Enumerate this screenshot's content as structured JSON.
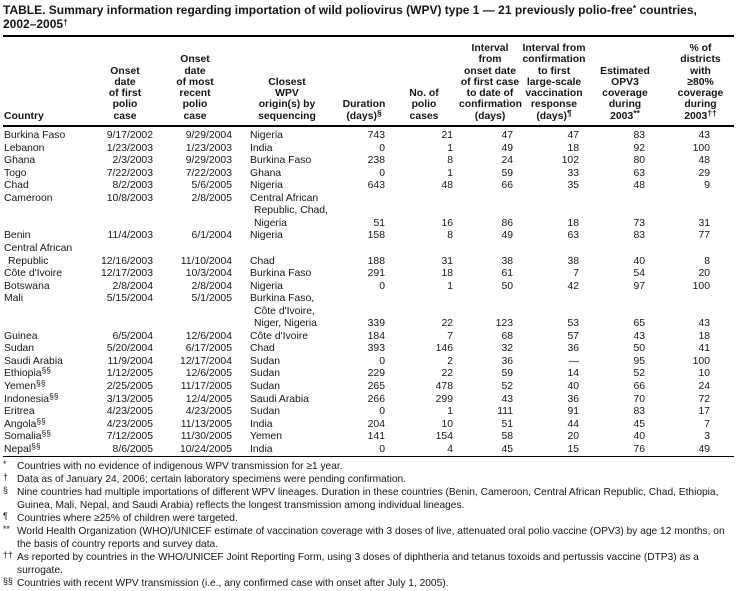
{
  "title_lines": [
    "TABLE. Summary information regarding importation of wild poliovirus (WPV) type 1 — 21 previously polio-free^{*} countries,",
    "2002–2005^{†}"
  ],
  "table": {
    "columns": [
      {
        "id": "country",
        "label": "Country"
      },
      {
        "id": "onset_first",
        "label": "Onset\ndate\nof first\npolio\ncase"
      },
      {
        "id": "onset_recent",
        "label": "Onset\ndate\nof most\nrecent\npolio\ncase"
      },
      {
        "id": "origin",
        "label": "Closest\nWPV\norigin(s) by\nsequencing"
      },
      {
        "id": "duration",
        "label": "Duration\n(days)^{§}"
      },
      {
        "id": "cases",
        "label": "No. of\npolio\ncases"
      },
      {
        "id": "interval_confirmation",
        "label": "Interval\nfrom\nonset date\nof first case\nto date of\nconfirmation\n(days)"
      },
      {
        "id": "interval_response",
        "label": "Interval from\nconfirmation\nto first\nlarge-scale\nvaccination\nresponse\n(days)^{¶}"
      },
      {
        "id": "opv3",
        "label": "Estimated\nOPV3\ncoverage\nduring\n2003^{**}"
      },
      {
        "id": "districts",
        "label": "% of\ndistricts\nwith\n≥80%\ncoverage\nduring\n2003^{††}"
      }
    ],
    "rows": [
      {
        "country": "Burkina Faso",
        "onset_first": "9/17/2002",
        "onset_recent": "9/29/2004",
        "origin": [
          "Nigeria"
        ],
        "duration": "743",
        "cases": "21",
        "interval_confirmation": "47",
        "interval_response": "47",
        "opv3": "83",
        "districts": "43"
      },
      {
        "country": "Lebanon",
        "onset_first": "1/23/2003",
        "onset_recent": "1/23/2003",
        "origin": [
          "India"
        ],
        "duration": "0",
        "cases": "1",
        "interval_confirmation": "49",
        "interval_response": "18",
        "opv3": "92",
        "districts": "100"
      },
      {
        "country": "Ghana",
        "onset_first": "2/3/2003",
        "onset_recent": "9/29/2003",
        "origin": [
          "Burkina Faso"
        ],
        "duration": "238",
        "cases": "8",
        "interval_confirmation": "24",
        "interval_response": "102",
        "opv3": "80",
        "districts": "48"
      },
      {
        "country": "Togo",
        "onset_first": "7/22/2003",
        "onset_recent": "7/22/2003",
        "origin": [
          "Ghana"
        ],
        "duration": "0",
        "cases": "1",
        "interval_confirmation": "59",
        "interval_response": "33",
        "opv3": "63",
        "districts": "29"
      },
      {
        "country": "Chad",
        "onset_first": "8/2/2003",
        "onset_recent": "5/6/2005",
        "origin": [
          "Nigeria"
        ],
        "duration": "643",
        "cases": "48",
        "interval_confirmation": "66",
        "interval_response": "35",
        "opv3": "48",
        "districts": "9"
      },
      {
        "country": "Cameroon",
        "onset_first": "10/8/2003",
        "onset_recent": "2/8/2005",
        "origin": [
          "Central African",
          "Republic, Chad,",
          "Nigeria"
        ],
        "duration": "51",
        "cases": "16",
        "interval_confirmation": "86",
        "interval_response": "18",
        "opv3": "73",
        "districts": "31"
      },
      {
        "country": "Benin",
        "onset_first": "11/4/2003",
        "onset_recent": "6/1/2004",
        "origin": [
          "Nigeria"
        ],
        "duration": "158",
        "cases": "8",
        "interval_confirmation": "49",
        "interval_response": "63",
        "opv3": "83",
        "districts": "77"
      },
      {
        "country": [
          "Central African",
          "Republic"
        ],
        "onset_first": "12/16/2003",
        "onset_recent": "11/10/2004",
        "origin": [
          "Chad"
        ],
        "duration": "188",
        "cases": "31",
        "interval_confirmation": "38",
        "interval_response": "38",
        "opv3": "40",
        "districts": "8"
      },
      {
        "country": "Côte d'Ivoire",
        "onset_first": "12/17/2003",
        "onset_recent": "10/3/2004",
        "origin": [
          "Burkina Faso"
        ],
        "duration": "291",
        "cases": "18",
        "interval_confirmation": "61",
        "interval_response": "7",
        "opv3": "54",
        "districts": "20"
      },
      {
        "country": "Botswana",
        "onset_first": "2/8/2004",
        "onset_recent": "2/8/2004",
        "origin": [
          "Nigeria"
        ],
        "duration": "0",
        "cases": "1",
        "interval_confirmation": "50",
        "interval_response": "42",
        "opv3": "97",
        "districts": "100"
      },
      {
        "country": "Mali",
        "onset_first": "5/15/2004",
        "onset_recent": "5/1/2005",
        "origin": [
          "Burkina Faso,",
          "Côte d'Ivoire,",
          "Niger, Nigeria"
        ],
        "duration": "339",
        "cases": "22",
        "interval_confirmation": "123",
        "interval_response": "53",
        "opv3": "65",
        "districts": "43"
      },
      {
        "country": "Guinea",
        "onset_first": "6/5/2004",
        "onset_recent": "12/6/2004",
        "origin": [
          "Côte d'Ivoire"
        ],
        "duration": "184",
        "cases": "7",
        "interval_confirmation": "68",
        "interval_response": "57",
        "opv3": "43",
        "districts": "18"
      },
      {
        "country": "Sudan",
        "onset_first": "5/20/2004",
        "onset_recent": "6/17/2005",
        "origin": [
          "Chad"
        ],
        "duration": "393",
        "cases": "146",
        "interval_confirmation": "32",
        "interval_response": "36",
        "opv3": "50",
        "districts": "41"
      },
      {
        "country": "Saudi Arabia",
        "onset_first": "11/9/2004",
        "onset_recent": "12/17/2004",
        "origin": [
          "Sudan"
        ],
        "duration": "0",
        "cases": "2",
        "interval_confirmation": "36",
        "interval_response": "—",
        "opv3": "95",
        "districts": "100"
      },
      {
        "country": "Ethiopia^{§§}",
        "onset_first": "1/12/2005",
        "onset_recent": "12/6/2005",
        "origin": [
          "Sudan"
        ],
        "duration": "229",
        "cases": "22",
        "interval_confirmation": "59",
        "interval_response": "14",
        "opv3": "52",
        "districts": "10"
      },
      {
        "country": "Yemen^{§§}",
        "onset_first": "2/25/2005",
        "onset_recent": "11/17/2005",
        "origin": [
          "Sudan"
        ],
        "duration": "265",
        "cases": "478",
        "interval_confirmation": "52",
        "interval_response": "40",
        "opv3": "66",
        "districts": "24"
      },
      {
        "country": "Indonesia^{§§}",
        "onset_first": "3/13/2005",
        "onset_recent": "12/4/2005",
        "origin": [
          "Saudi Arabia"
        ],
        "duration": "266",
        "cases": "299",
        "interval_confirmation": "43",
        "interval_response": "36",
        "opv3": "70",
        "districts": "72"
      },
      {
        "country": "Eritrea",
        "onset_first": "4/23/2005",
        "onset_recent": "4/23/2005",
        "origin": [
          "Sudan"
        ],
        "duration": "0",
        "cases": "1",
        "interval_confirmation": "111",
        "interval_response": "91",
        "opv3": "83",
        "districts": "17"
      },
      {
        "country": "Angola^{§§}",
        "onset_first": "4/23/2005",
        "onset_recent": "11/13/2005",
        "origin": [
          "India"
        ],
        "duration": "204",
        "cases": "10",
        "interval_confirmation": "51",
        "interval_response": "44",
        "opv3": "45",
        "districts": "7"
      },
      {
        "country": "Somalia^{§§}",
        "onset_first": "7/12/2005",
        "onset_recent": "11/30/2005",
        "origin": [
          "Yemen"
        ],
        "duration": "141",
        "cases": "154",
        "interval_confirmation": "58",
        "interval_response": "20",
        "opv3": "40",
        "districts": "3"
      },
      {
        "country": "Nepal^{§§}",
        "onset_first": "8/6/2005",
        "onset_recent": "10/24/2005",
        "origin": [
          "India"
        ],
        "duration": "0",
        "cases": "4",
        "interval_confirmation": "45",
        "interval_response": "15",
        "opv3": "76",
        "districts": "49"
      }
    ]
  },
  "footnotes": [
    {
      "marker": "*",
      "text": "Countries with no evidence of indigenous WPV transmission for ≥1 year."
    },
    {
      "marker": "†",
      "text": "Data as of January 24, 2006; certain laboratory specimens were pending confirmation."
    },
    {
      "marker": "§",
      "text": "Nine countries had multiple importations of different WPV lineages. Duration in these countries (Benin, Cameroon, Central African Republic, Chad, Ethiopia, Guinea, Mali, Nepal, and Saudi Arabia) reflects the longest transmission among individual lineages."
    },
    {
      "marker": "¶",
      "text": "Countries where ≥25% of children were targeted."
    },
    {
      "marker": "**",
      "text": "World Health Organization (WHO)/UNICEF estimate of vaccination coverage with 3 doses of live, attenuated oral polio vaccine (OPV3) by age 12 months, on the basis of country reports and survey data."
    },
    {
      "marker": "††",
      "text": "As reported by countries in the WHO/UNICEF Joint Reporting Form, using 3 doses of diphtheria and tetanus toxoids and pertussis vaccine (DTP3) as a surrogate."
    },
    {
      "marker": "§§",
      "text": "Countries with recent WPV transmission (i.e., any confirmed case with onset after July 1, 2005)."
    }
  ],
  "colors": {
    "text": "#161616",
    "background": "#ffffff",
    "rule": "#000000"
  }
}
